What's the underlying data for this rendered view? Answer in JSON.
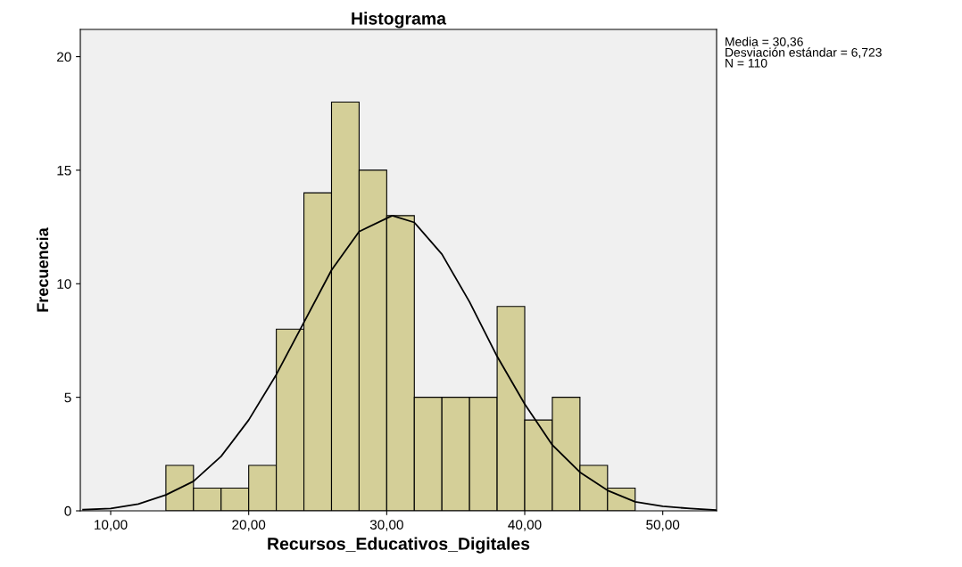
{
  "chart_data": {
    "type": "histogram",
    "title": "Histograma",
    "xlabel": "Recursos_Educativos_Digitales",
    "ylabel": "Frecuencia",
    "bins": [
      14,
      16,
      18,
      20,
      22,
      24,
      26,
      28,
      30,
      32,
      34,
      36,
      38,
      40,
      42,
      44,
      46,
      48
    ],
    "values": [
      2,
      1,
      1,
      2,
      8,
      14,
      18,
      15,
      13,
      5,
      5,
      5,
      9,
      4,
      5,
      2,
      1
    ],
    "color": "#d4cf98",
    "series": [
      {
        "type": "line",
        "color": "#000000",
        "x": [
          8,
          10,
          12,
          14,
          16,
          18,
          20,
          22,
          24,
          26,
          28,
          30.4,
          32,
          34,
          36,
          38,
          40,
          42,
          44,
          46,
          48,
          50,
          52,
          53.9
        ],
        "values": [
          0.05,
          0.1,
          0.3,
          0.7,
          1.3,
          2.4,
          4.0,
          6.0,
          8.3,
          10.6,
          12.3,
          13.0,
          12.7,
          11.3,
          9.2,
          6.8,
          4.7,
          2.9,
          1.7,
          0.9,
          0.4,
          0.2,
          0.1,
          0.03
        ]
      }
    ],
    "xlim": [
      7.8,
      53.9
    ],
    "xticks": [
      {
        "value": 10,
        "label": "10,00"
      },
      {
        "value": 20,
        "label": "20,00"
      },
      {
        "value": 30,
        "label": "30,00"
      },
      {
        "value": 40,
        "label": "40,00"
      },
      {
        "value": 50,
        "label": "50,00"
      }
    ],
    "ylim": [
      0,
      21.2
    ],
    "yticks": [
      0,
      5,
      10,
      15,
      20
    ],
    "grid": false,
    "legend": false,
    "marker": "none",
    "line_style": "solid",
    "annotations": [
      "Media = 30,36",
      "Desviación estándar = 6,723",
      "N = 110"
    ]
  }
}
